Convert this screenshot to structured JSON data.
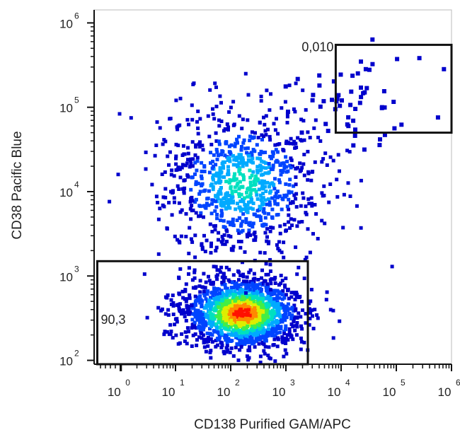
{
  "chart_data": {
    "type": "scatter",
    "subtype": "flow-cytometry-density-dot-plot",
    "xlabel": "CD138 Purified GAM/APC",
    "ylabel": "CD38 Pacific Blue",
    "x_scale": "biexponential",
    "y_scale": "log",
    "xlim": [
      -30,
      1000000
    ],
    "ylim": [
      90,
      1600000
    ],
    "x_ticks": [
      {
        "base": "10",
        "exp": "0",
        "value": 1
      },
      {
        "base": "10",
        "exp": "1",
        "value": 10
      },
      {
        "base": "10",
        "exp": "2",
        "value": 100
      },
      {
        "base": "10",
        "exp": "3",
        "value": 1000
      },
      {
        "base": "10",
        "exp": "4",
        "value": 10000
      },
      {
        "base": "10",
        "exp": "5",
        "value": 100000
      },
      {
        "base": "10",
        "exp": "6",
        "value": 1000000
      }
    ],
    "y_ticks": [
      {
        "base": "10",
        "exp": "2",
        "value": 100
      },
      {
        "base": "10",
        "exp": "3",
        "value": 1000
      },
      {
        "base": "10",
        "exp": "4",
        "value": 10000
      },
      {
        "base": "10",
        "exp": "5",
        "value": 100000
      },
      {
        "base": "10",
        "exp": "6",
        "value": 1000000
      }
    ],
    "populations": [
      {
        "center_x": 150,
        "center_y": 380,
        "spread_x_decades": 0.55,
        "spread_y_decades": 0.22,
        "density": "high"
      },
      {
        "center_x": 150,
        "center_y": 13000,
        "spread_x_decades": 0.75,
        "spread_y_decades": 0.45,
        "density": "medium"
      },
      {
        "center_x": 20000,
        "center_y": 120000,
        "spread_x_decades": 0.6,
        "spread_y_decades": 0.3,
        "density": "sparse"
      }
    ],
    "gates": [
      {
        "label": "90,3",
        "x_range": [
          -25,
          2500
        ],
        "y_range": [
          90,
          1500
        ]
      },
      {
        "label": "0,010",
        "x_range": [
          8000,
          1000000
        ],
        "y_range": [
          50000,
          550000
        ]
      }
    ],
    "colormap": [
      "#0000cc",
      "#0044ff",
      "#00aaff",
      "#00e0c0",
      "#44ee44",
      "#ddee00",
      "#ff8800",
      "#ff1100"
    ]
  }
}
